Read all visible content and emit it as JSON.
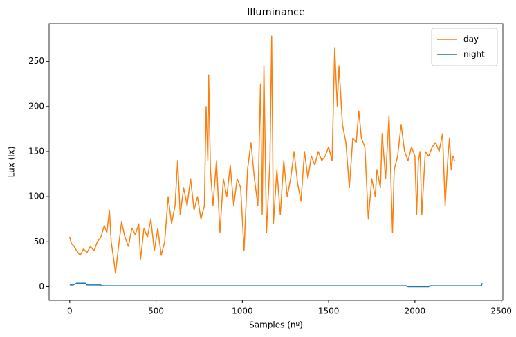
{
  "chart_data": {
    "type": "line",
    "title": "Illuminance",
    "xlabel": "Samples (nº)",
    "ylabel": "Lux (lx)",
    "xlim": [
      -119.5,
      2509.5
    ],
    "xticks": [
      0,
      500,
      1000,
      1500,
      2000,
      2500
    ],
    "ylim": [
      -15,
      292
    ],
    "yticks": [
      0,
      50,
      100,
      150,
      200,
      250
    ],
    "grid": false,
    "legend": "upper right",
    "series": [
      {
        "name": "day",
        "color": "#ff7f0e",
        "x": [
          0,
          10,
          25,
          40,
          60,
          80,
          100,
          120,
          140,
          160,
          180,
          200,
          215,
          230,
          240,
          255,
          265,
          280,
          300,
          320,
          340,
          360,
          380,
          400,
          410,
          430,
          450,
          470,
          490,
          510,
          530,
          550,
          570,
          590,
          610,
          625,
          640,
          660,
          680,
          700,
          720,
          740,
          760,
          780,
          790,
          800,
          805,
          815,
          830,
          850,
          870,
          890,
          910,
          930,
          950,
          970,
          990,
          1010,
          1030,
          1050,
          1070,
          1090,
          1105,
          1115,
          1125,
          1140,
          1160,
          1170,
          1180,
          1200,
          1220,
          1240,
          1260,
          1280,
          1300,
          1320,
          1340,
          1360,
          1380,
          1400,
          1420,
          1440,
          1460,
          1480,
          1500,
          1520,
          1535,
          1550,
          1560,
          1580,
          1600,
          1620,
          1640,
          1660,
          1675,
          1690,
          1710,
          1730,
          1750,
          1770,
          1780,
          1800,
          1810,
          1830,
          1850,
          1870,
          1880,
          1900,
          1920,
          1940,
          1960,
          1980,
          2000,
          2010,
          2020,
          2030,
          2040,
          2060,
          2080,
          2100,
          2120,
          2140,
          2160,
          2175,
          2190,
          2200,
          2210,
          2220,
          2230
        ],
        "values": [
          55,
          48,
          45,
          40,
          35,
          42,
          38,
          45,
          40,
          50,
          55,
          68,
          60,
          85,
          50,
          30,
          15,
          40,
          72,
          55,
          45,
          65,
          58,
          70,
          30,
          65,
          55,
          75,
          40,
          65,
          35,
          50,
          100,
          70,
          90,
          140,
          80,
          110,
          90,
          120,
          85,
          100,
          75,
          90,
          200,
          140,
          235,
          130,
          90,
          140,
          60,
          120,
          100,
          135,
          90,
          120,
          110,
          40,
          130,
          160,
          120,
          90,
          225,
          80,
          245,
          60,
          140,
          278,
          70,
          130,
          80,
          140,
          100,
          120,
          150,
          115,
          95,
          150,
          120,
          145,
          135,
          150,
          140,
          145,
          155,
          140,
          265,
          200,
          245,
          180,
          160,
          110,
          165,
          160,
          195,
          165,
          155,
          75,
          120,
          100,
          130,
          110,
          170,
          120,
          190,
          60,
          130,
          145,
          180,
          150,
          140,
          155,
          145,
          80,
          140,
          150,
          80,
          150,
          145,
          155,
          160,
          150,
          170,
          90,
          140,
          165,
          130,
          145,
          140
        ]
      },
      {
        "name": "night",
        "color": "#1f77b4",
        "x": [
          0,
          20,
          40,
          90,
          100,
          180,
          185,
          1950,
          1960,
          2080,
          2085,
          2385,
          2390
        ],
        "values": [
          2,
          2,
          4,
          4,
          2,
          2,
          1,
          1,
          0,
          0,
          1,
          1,
          4
        ]
      }
    ]
  }
}
